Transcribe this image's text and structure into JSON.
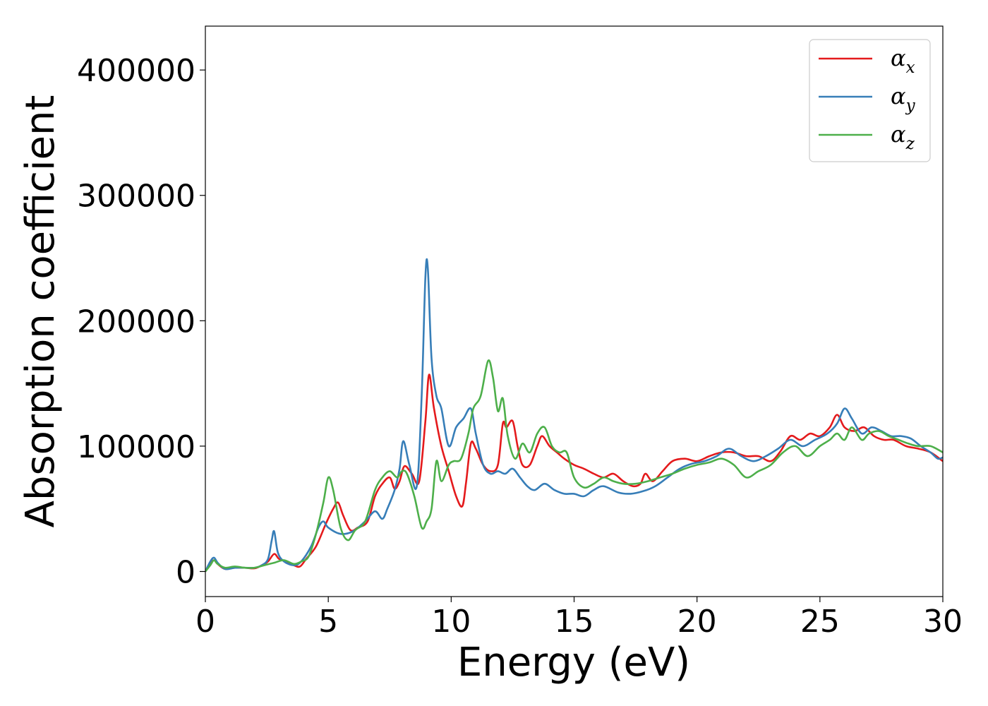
{
  "chart_data": {
    "type": "line",
    "title": "",
    "xlabel": "Energy (eV)",
    "ylabel": "Absorption coefficient",
    "xlim": [
      0,
      30
    ],
    "ylim": [
      -20000,
      435000
    ],
    "xticks": [
      0,
      5,
      10,
      15,
      20,
      25,
      30
    ],
    "xtick_labels": [
      "0",
      "5",
      "10",
      "15",
      "20",
      "25",
      "30"
    ],
    "yticks": [
      0,
      100000,
      200000,
      300000,
      400000
    ],
    "ytick_labels": [
      "0",
      "100000",
      "200000",
      "300000",
      "400000"
    ],
    "grid": false,
    "legend_position": "top-right",
    "series": [
      {
        "name": "α_x",
        "legend_base": "α",
        "legend_sub": "x",
        "color": "#e41a1c",
        "x": [
          0,
          0.2,
          0.35,
          0.5,
          0.8,
          1.2,
          1.6,
          2.0,
          2.3,
          2.55,
          2.8,
          3.0,
          3.3,
          3.6,
          3.85,
          4.1,
          4.5,
          4.9,
          5.2,
          5.4,
          5.6,
          5.9,
          6.2,
          6.6,
          6.9,
          7.2,
          7.5,
          7.7,
          7.9,
          8.1,
          8.4,
          8.7,
          8.95,
          9.1,
          9.3,
          9.6,
          9.9,
          10.2,
          10.45,
          10.6,
          10.8,
          11.0,
          11.3,
          11.6,
          11.9,
          12.1,
          12.25,
          12.5,
          12.7,
          12.9,
          13.2,
          13.5,
          13.7,
          14.0,
          14.3,
          14.6,
          15.0,
          15.4,
          15.8,
          16.2,
          16.6,
          17.0,
          17.4,
          17.7,
          17.9,
          18.2,
          18.6,
          19.0,
          19.5,
          20.0,
          20.5,
          21.0,
          21.5,
          22.0,
          22.5,
          23.0,
          23.4,
          23.8,
          24.2,
          24.6,
          25.0,
          25.4,
          25.7,
          26.0,
          26.4,
          26.8,
          27.2,
          27.6,
          28.0,
          28.5,
          29.0,
          29.5,
          30.0
        ],
        "y": [
          0,
          6000,
          9000,
          6000,
          2000,
          3000,
          3000,
          2500,
          5000,
          8000,
          14000,
          10000,
          8000,
          5000,
          4000,
          10000,
          20000,
          38000,
          50000,
          55000,
          45000,
          33000,
          35000,
          40000,
          60000,
          70000,
          75000,
          66000,
          72000,
          84000,
          78000,
          72000,
          120000,
          157000,
          130000,
          100000,
          80000,
          60000,
          52000,
          70000,
          102000,
          98000,
          85000,
          80000,
          85000,
          118000,
          115000,
          120000,
          100000,
          85000,
          85000,
          100000,
          108000,
          100000,
          95000,
          90000,
          85000,
          82000,
          78000,
          75000,
          78000,
          72000,
          68000,
          70000,
          78000,
          72000,
          80000,
          88000,
          90000,
          88000,
          92000,
          95000,
          95000,
          92000,
          92000,
          88000,
          96000,
          108000,
          105000,
          110000,
          108000,
          115000,
          125000,
          115000,
          112000,
          115000,
          108000,
          105000,
          105000,
          100000,
          98000,
          95000,
          88000
        ]
      },
      {
        "name": "α_y",
        "legend_base": "α",
        "legend_sub": "y",
        "color": "#377eb8",
        "x": [
          0,
          0.2,
          0.35,
          0.5,
          0.8,
          1.2,
          1.6,
          2.0,
          2.3,
          2.55,
          2.7,
          2.8,
          2.95,
          3.2,
          3.6,
          3.9,
          4.3,
          4.6,
          4.8,
          5.0,
          5.5,
          6.0,
          6.5,
          6.9,
          7.2,
          7.4,
          7.7,
          7.9,
          8.05,
          8.3,
          8.6,
          8.8,
          8.95,
          9.05,
          9.2,
          9.4,
          9.6,
          9.9,
          10.2,
          10.5,
          10.8,
          11.0,
          11.3,
          11.6,
          11.9,
          12.2,
          12.5,
          12.8,
          13.1,
          13.4,
          13.8,
          14.2,
          14.6,
          15.0,
          15.4,
          15.8,
          16.2,
          16.8,
          17.3,
          17.8,
          18.3,
          18.8,
          19.3,
          19.8,
          20.3,
          20.8,
          21.3,
          21.8,
          22.3,
          22.8,
          23.3,
          23.8,
          24.3,
          24.8,
          25.3,
          25.7,
          26.0,
          26.3,
          26.7,
          27.1,
          27.5,
          27.9,
          28.3,
          28.7,
          29.1,
          29.5,
          29.8,
          30.0
        ],
        "y": [
          0,
          8000,
          11000,
          7000,
          2000,
          3000,
          3000,
          3000,
          5000,
          10000,
          25000,
          32000,
          15000,
          8000,
          5000,
          8000,
          20000,
          35000,
          40000,
          35000,
          30000,
          32000,
          40000,
          48000,
          42000,
          50000,
          65000,
          82000,
          104000,
          85000,
          68000,
          140000,
          235000,
          242000,
          170000,
          140000,
          130000,
          100000,
          115000,
          122000,
          130000,
          110000,
          85000,
          78000,
          80000,
          78000,
          82000,
          75000,
          68000,
          65000,
          70000,
          65000,
          62000,
          62000,
          60000,
          65000,
          68000,
          63000,
          62000,
          64000,
          68000,
          75000,
          82000,
          86000,
          88000,
          92000,
          98000,
          92000,
          88000,
          92000,
          98000,
          105000,
          100000,
          105000,
          110000,
          118000,
          130000,
          122000,
          110000,
          115000,
          112000,
          108000,
          108000,
          106000,
          100000,
          95000,
          90000,
          91000
        ]
      },
      {
        "name": "α_z",
        "legend_base": "α",
        "legend_sub": "z",
        "color": "#4daf4a",
        "x": [
          0,
          0.2,
          0.35,
          0.5,
          0.8,
          1.2,
          1.6,
          2.0,
          2.4,
          2.8,
          3.2,
          3.6,
          3.9,
          4.2,
          4.5,
          4.8,
          5.0,
          5.2,
          5.5,
          5.8,
          6.1,
          6.5,
          6.9,
          7.2,
          7.5,
          7.8,
          8.0,
          8.2,
          8.5,
          8.8,
          9.0,
          9.2,
          9.4,
          9.6,
          9.9,
          10.1,
          10.4,
          10.7,
          10.9,
          11.2,
          11.5,
          11.7,
          11.9,
          12.1,
          12.3,
          12.6,
          12.9,
          13.2,
          13.5,
          13.8,
          14.1,
          14.4,
          14.7,
          15.0,
          15.4,
          15.8,
          16.2,
          16.6,
          17.0,
          17.5,
          18.0,
          18.5,
          19.0,
          19.5,
          20.0,
          20.5,
          21.0,
          21.5,
          22.0,
          22.5,
          23.0,
          23.5,
          24.0,
          24.5,
          25.0,
          25.4,
          25.7,
          26.0,
          26.3,
          26.7,
          27.0,
          27.4,
          27.8,
          28.2,
          28.6,
          29.0,
          29.5,
          30.0
        ],
        "y": [
          0,
          5000,
          9000,
          6000,
          3000,
          4000,
          3000,
          3000,
          5000,
          7000,
          9000,
          6000,
          8000,
          12000,
          30000,
          55000,
          75000,
          65000,
          35000,
          25000,
          33000,
          40000,
          65000,
          75000,
          80000,
          75000,
          80000,
          78000,
          60000,
          35000,
          40000,
          50000,
          88000,
          72000,
          85000,
          88000,
          90000,
          110000,
          130000,
          140000,
          168000,
          155000,
          128000,
          138000,
          108000,
          90000,
          102000,
          95000,
          110000,
          115000,
          100000,
          95000,
          95000,
          75000,
          67000,
          70000,
          75000,
          72000,
          70000,
          70000,
          72000,
          75000,
          78000,
          82000,
          85000,
          87000,
          90000,
          85000,
          75000,
          80000,
          85000,
          95000,
          100000,
          92000,
          100000,
          105000,
          110000,
          105000,
          115000,
          105000,
          110000,
          112000,
          108000,
          105000,
          102000,
          100000,
          100000,
          95000
        ]
      }
    ]
  }
}
